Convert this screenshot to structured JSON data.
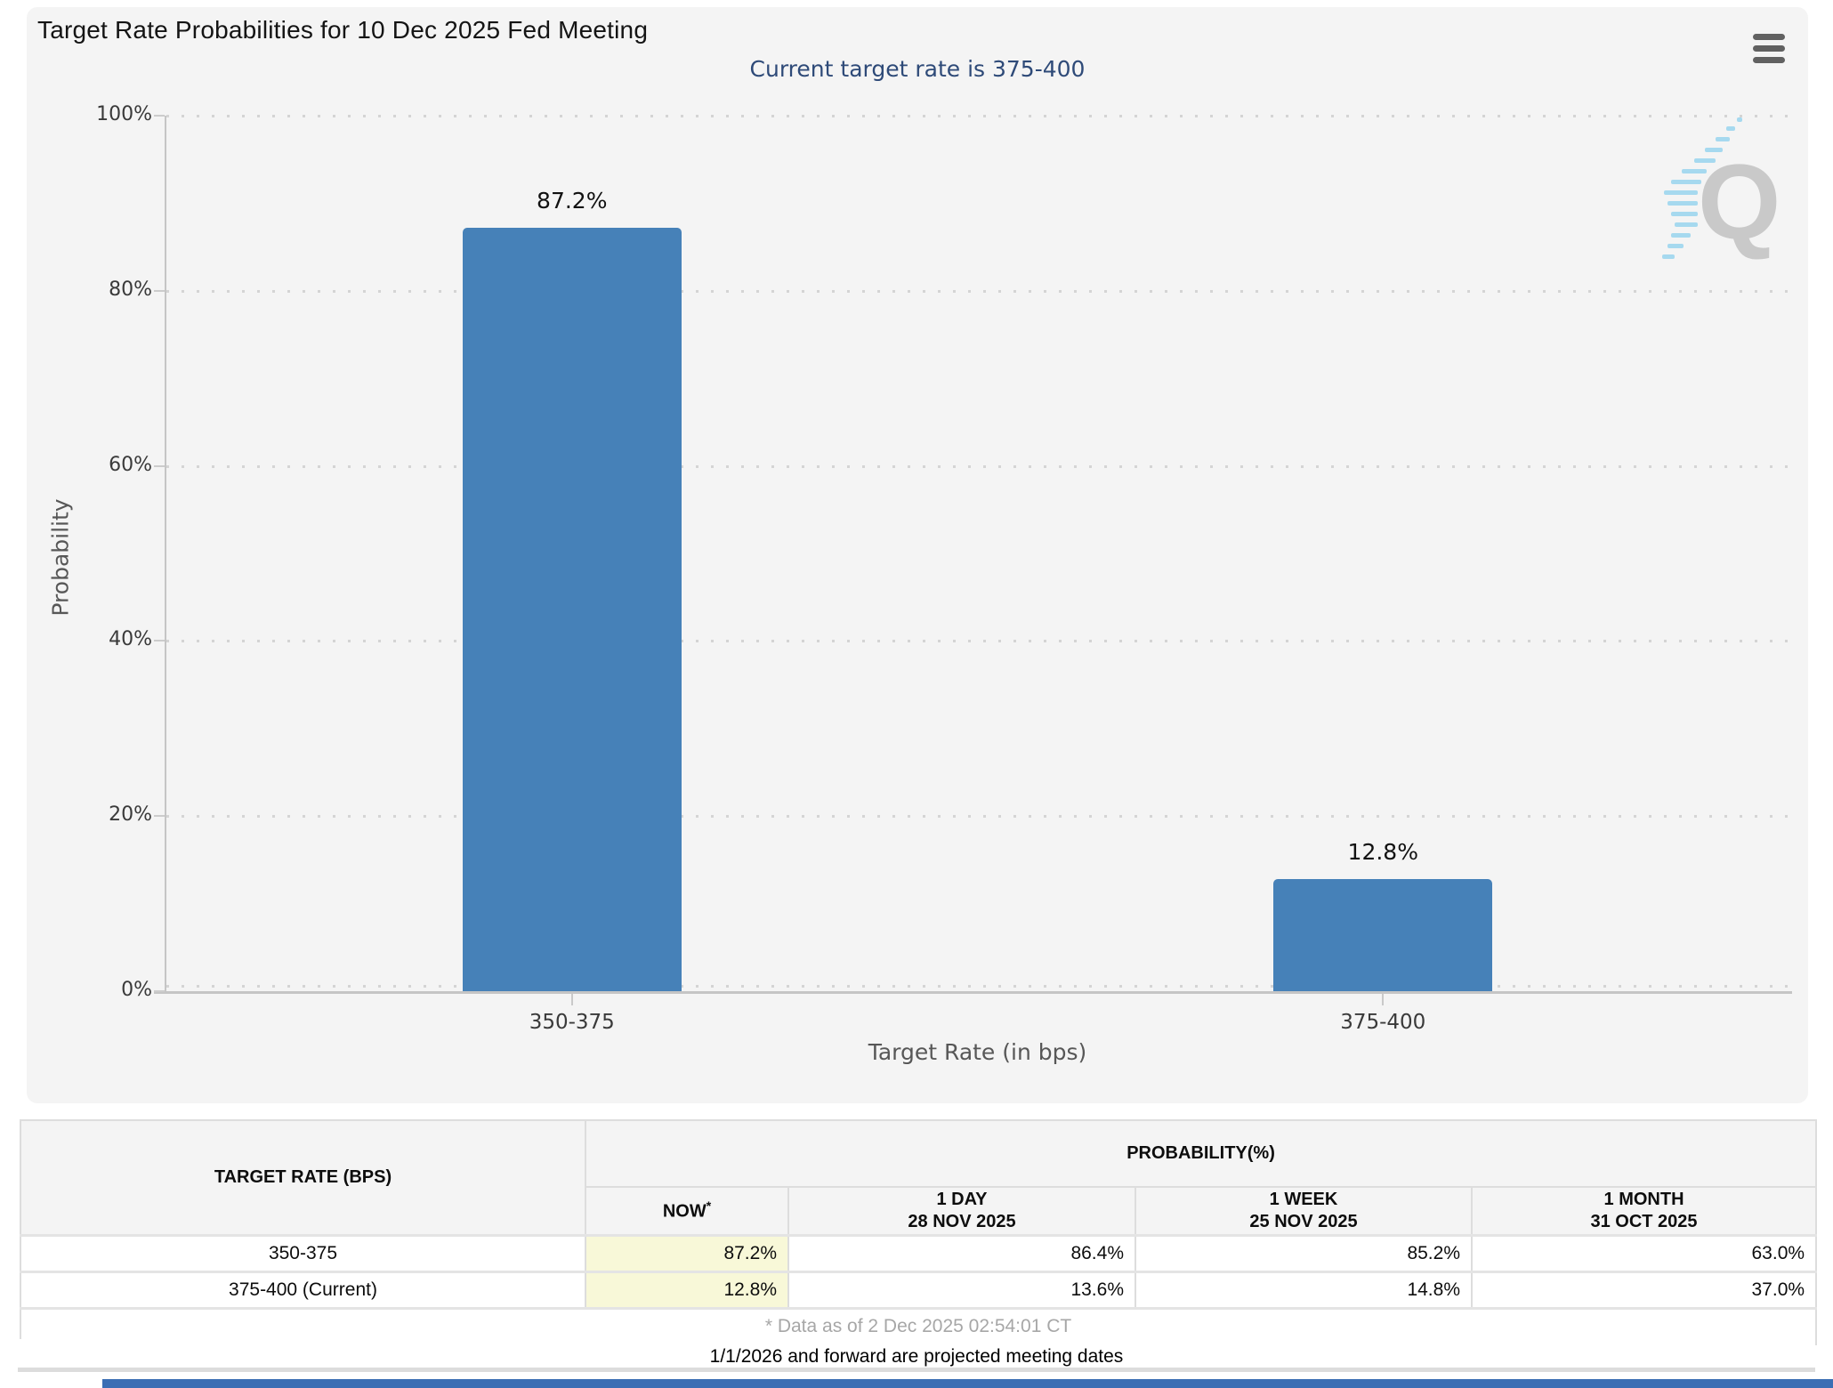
{
  "header": {
    "title": "Target Rate Probabilities for 10 Dec 2025 Fed Meeting",
    "subtitle": "Current target rate is 375-400"
  },
  "colors": {
    "bar": "#4681b8",
    "subtitle_navy": "#2e4a78",
    "now_highlight": "#f8f8d8",
    "panel_bg": "#f4f4f4",
    "bottom_bar_blue": "#3b6eb4"
  },
  "chart_data": {
    "type": "bar",
    "title": "Target Rate Probabilities for 10 Dec 2025 Fed Meeting",
    "subtitle": "Current target rate is 375-400",
    "categories": [
      "350-375",
      "375-400"
    ],
    "values": [
      87.2,
      12.8
    ],
    "value_labels": [
      "87.2%",
      "12.8%"
    ],
    "xlabel": "Target Rate (in bps)",
    "ylabel": "Probability",
    "ylim": [
      0,
      100
    ],
    "ytick_step": 20,
    "ytick_labels": [
      "0%",
      "20%",
      "40%",
      "60%",
      "80%",
      "100%"
    ],
    "grid": "dotted-horizontal",
    "legend": "none",
    "bar_color": "#4681b8"
  },
  "watermark": {
    "letter": "Q"
  },
  "table": {
    "col1_header": "TARGET RATE (BPS)",
    "group_header": "PROBABILITY(%)",
    "now_header": {
      "label": "NOW",
      "sup": "*"
    },
    "date_headers": [
      {
        "label": "1 DAY",
        "date": "28 NOV 2025"
      },
      {
        "label": "1 WEEK",
        "date": "25 NOV 2025"
      },
      {
        "label": "1 MONTH",
        "date": "31 OCT 2025"
      }
    ],
    "rows": [
      {
        "target_rate": "350-375",
        "now": "87.2%",
        "day": "86.4%",
        "week": "85.2%",
        "month": "63.0%"
      },
      {
        "target_rate": "375-400 (Current)",
        "now": "12.8%",
        "day": "13.6%",
        "week": "14.8%",
        "month": "37.0%"
      }
    ],
    "footnote": "* Data as of 2 Dec 2025 02:54:01 CT"
  },
  "footer": {
    "projected_note": "1/1/2026 and forward are projected meeting dates"
  }
}
